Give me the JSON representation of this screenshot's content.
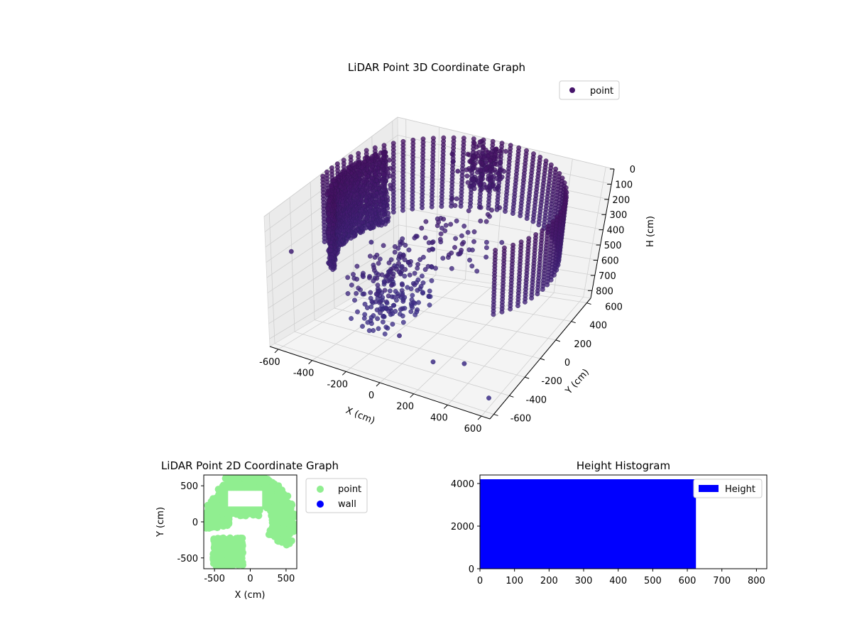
{
  "chart_data": [
    {
      "type": "scatter3d",
      "title": "LiDAR Point 3D Coordinate Graph",
      "xlabel": "X (cm)",
      "ylabel": "Y (cm)",
      "zlabel": "H (cm)",
      "xlim": [
        -650,
        650
      ],
      "ylim": [
        -650,
        650
      ],
      "zlim": [
        850,
        0
      ],
      "x_ticks": [
        -600,
        -400,
        -200,
        0,
        200,
        400,
        600
      ],
      "y_ticks": [
        -600,
        -400,
        -200,
        0,
        200,
        400,
        600
      ],
      "z_ticks": [
        0,
        100,
        200,
        300,
        400,
        500,
        600,
        700,
        800
      ],
      "grid": true,
      "legend": {
        "placement": "top-right",
        "entries": [
          "point"
        ]
      },
      "series": [
        {
          "name": "point",
          "color": "#46146b",
          "description_points": [
            {
              "x": -640,
              "y": -420,
              "h": 330
            },
            {
              "x": -600,
              "y": 300,
              "h": 560
            },
            {
              "x": -300,
              "y": 620,
              "h": 120
            },
            {
              "x": -280,
              "y": 600,
              "h": 150
            },
            {
              "x": -250,
              "y": 600,
              "h": 200
            },
            {
              "x": -150,
              "y": 600,
              "h": 260
            },
            {
              "x": 50,
              "y": -520,
              "h": 600
            },
            {
              "x": 250,
              "y": -520,
              "h": 700
            },
            {
              "x": 400,
              "y": -450,
              "h": 700
            },
            {
              "x": 620,
              "y": -600,
              "h": 760
            }
          ]
        }
      ]
    },
    {
      "type": "scatter",
      "title": "LiDAR Point 2D Coordinate Graph",
      "xlabel": "X (cm)",
      "ylabel": "Y (cm)",
      "xlim": [
        -650,
        650
      ],
      "ylim": [
        -650,
        650
      ],
      "x_ticks": [
        -500,
        0,
        500
      ],
      "y_ticks": [
        -500,
        0,
        500
      ],
      "grid": false,
      "legend": {
        "placement": "outside-right",
        "entries": [
          "point",
          "wall"
        ]
      },
      "series": [
        {
          "name": "point",
          "color": "#90ee90"
        },
        {
          "name": "wall",
          "color": "#0000ff"
        }
      ]
    },
    {
      "type": "bar",
      "title": "Height Histogram",
      "xlabel": "",
      "ylabel": "",
      "xlim": [
        0,
        830
      ],
      "ylim": [
        0,
        4400
      ],
      "x_ticks": [
        0,
        100,
        200,
        300,
        400,
        500,
        600,
        700,
        800
      ],
      "y_ticks": [
        0,
        2000,
        4000
      ],
      "grid": false,
      "legend": {
        "placement": "top-right",
        "entries": [
          "Height"
        ]
      },
      "series": [
        {
          "name": "Height",
          "color": "#0000ff",
          "bins": [
            {
              "from": 0,
              "to": 625,
              "count": 4200
            }
          ]
        }
      ]
    }
  ]
}
